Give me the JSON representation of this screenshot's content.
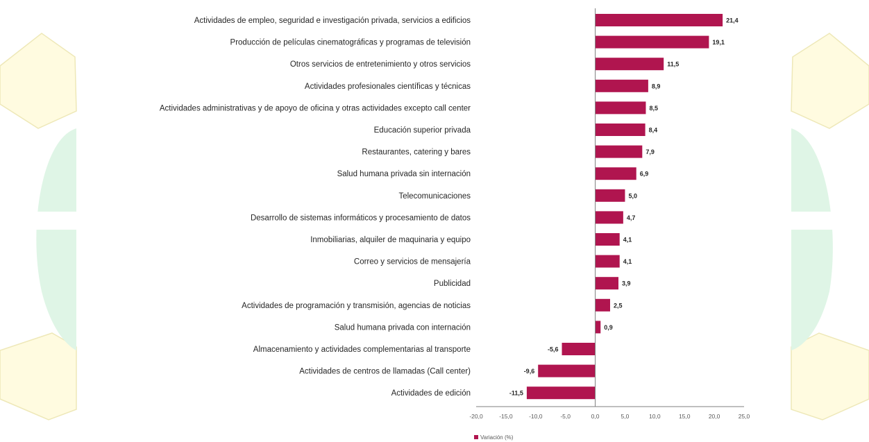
{
  "chart_data": {
    "type": "bar",
    "orientation": "horizontal",
    "categories": [
      "Actividades de empleo, seguridad e investigación privada, servicios a edificios",
      "Producción de películas cinematográficas y programas de televisión",
      "Otros servicios de entretenimiento y otros servicios",
      "Actividades profesionales científicas y técnicas",
      "Actividades administrativas y de apoyo de oficina y otras actividades excepto call center",
      "Educación superior privada",
      "Restaurantes, catering y bares",
      "Salud humana privada sin internación",
      "Telecomunicaciones",
      "Desarrollo de sistemas informáticos y procesamiento de datos",
      "Inmobiliarias, alquiler de maquinaria y equipo",
      "Correo y servicios de mensajería",
      "Publicidad",
      "Actividades de programación y transmisión, agencias de noticias",
      "Salud humana privada con internación",
      "Almacenamiento y actividades complementarias al transporte",
      "Actividades de centros de llamadas (Call center)",
      "Actividades de edición"
    ],
    "values": [
      21.4,
      19.1,
      11.5,
      8.9,
      8.5,
      8.4,
      7.9,
      6.9,
      5.0,
      4.7,
      4.1,
      4.1,
      3.9,
      2.5,
      0.9,
      -5.6,
      -9.6,
      -11.5
    ],
    "value_labels": [
      "21,4",
      "19,1",
      "11,5",
      "8,9",
      "8,5",
      "8,4",
      "7,9",
      "6,9",
      "5,0",
      "4,7",
      "4,1",
      "4,1",
      "3,9",
      "2,5",
      "0,9",
      "-5,6",
      "-9,6",
      "-11,5"
    ],
    "series": [
      {
        "name": "Variación (%)",
        "color": "#b0154f"
      }
    ],
    "xlim": [
      -20,
      25
    ],
    "xticks": [
      -20,
      -15,
      -10,
      -5,
      0,
      5,
      10,
      15,
      20,
      25
    ],
    "xtick_labels": [
      "-20,0",
      "-15,0",
      "-10,0",
      "-5,0",
      "0,0",
      "5,0",
      "10,0",
      "15,0",
      "20,0",
      "25,0"
    ],
    "title": "",
    "xlabel": "",
    "ylabel": "",
    "grid": false,
    "legend_position": "bottom-left"
  }
}
